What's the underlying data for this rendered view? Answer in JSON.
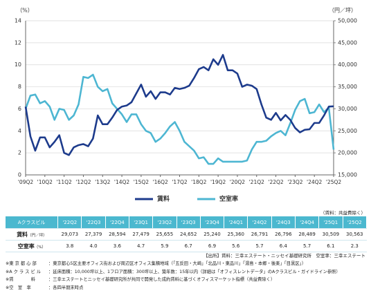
{
  "chart_data": {
    "type": "line",
    "y_label": "（%）",
    "y2_label": "（円／坪）",
    "categories": [
      "'09Q2",
      null,
      null,
      null,
      "'10Q2",
      null,
      null,
      null,
      "'11Q2",
      null,
      null,
      null,
      "'12Q2",
      null,
      null,
      null,
      "'13Q2",
      null,
      null,
      null,
      "'14Q2",
      null,
      null,
      null,
      "'15Q2",
      null,
      null,
      null,
      "'16Q2",
      null,
      null,
      null,
      "'17Q2",
      null,
      null,
      null,
      "'18Q2",
      null,
      null,
      null,
      "'19Q2",
      null,
      null,
      null,
      "'20Q2",
      null,
      null,
      null,
      "'21Q2",
      null,
      null,
      null,
      "'22Q2",
      null,
      null,
      null,
      "'23Q2",
      null,
      null,
      null,
      "'24Q2",
      null,
      null,
      null,
      "'25Q2"
    ],
    "series": [
      {
        "name": "賃料",
        "color": "#1d3b8c",
        "axis": "y2",
        "values": [
          30500,
          23750,
          20500,
          23500,
          23500,
          21250,
          22500,
          24000,
          20000,
          19500,
          21250,
          21750,
          22000,
          21500,
          23250,
          28500,
          26500,
          26500,
          28000,
          29750,
          30500,
          30750,
          31500,
          33500,
          35500,
          32750,
          34000,
          32250,
          33750,
          33750,
          33250,
          34750,
          34500,
          34750,
          35250,
          37000,
          39000,
          39500,
          38750,
          41250,
          40000,
          42250,
          38750,
          38750,
          38000,
          35000,
          35500,
          35250,
          34500,
          31000,
          28000,
          27500,
          29073,
          27379,
          28594,
          27479,
          25655,
          24652,
          25240,
          25360,
          26791,
          26796,
          28489,
          30509,
          30563
        ]
      },
      {
        "name": "空室率",
        "color": "#4db6d2",
        "values": [
          6.0,
          7.2,
          7.3,
          6.5,
          6.7,
          6.2,
          5.0,
          6.0,
          5.9,
          5.0,
          5.4,
          6.4,
          8.9,
          8.8,
          9.1,
          8.0,
          7.6,
          7.8,
          6.5,
          6.0,
          5.5,
          4.8,
          5.5,
          5.5,
          4.6,
          4.0,
          3.8,
          3.0,
          3.3,
          3.8,
          4.4,
          4.8,
          4.0,
          3.0,
          2.6,
          2.2,
          1.5,
          1.6,
          1.0,
          1.0,
          1.5,
          1.2,
          1.2,
          1.2,
          1.2,
          1.2,
          1.3,
          2.3,
          3.0,
          3.0,
          3.1,
          3.5,
          3.8,
          4.0,
          3.6,
          4.7,
          5.9,
          6.7,
          6.9,
          5.6,
          5.7,
          6.4,
          5.7,
          6.1,
          2.3
        ]
      }
    ],
    "ylim": [
      0,
      14
    ],
    "yticks": [
      0,
      2,
      4,
      6,
      8,
      10,
      12,
      14
    ],
    "y2lim": [
      15000,
      50000
    ],
    "y2ticks": [
      {
        "value": 15000,
        "label": "15,000"
      },
      {
        "value": 20000,
        "label": "20,000"
      },
      {
        "value": 25000,
        "label": "25,000"
      },
      {
        "value": 30000,
        "label": "30,000"
      },
      {
        "value": 35000,
        "label": "35,000"
      },
      {
        "value": 40000,
        "label": "40,000"
      },
      {
        "value": 45000,
        "label": "45,000"
      },
      {
        "value": 50000,
        "label": "50,000"
      }
    ],
    "grid": true,
    "legend": "bottom"
  },
  "table": {
    "note": "（賃料：共益費除く）",
    "header": [
      "Aクラスビル",
      "'22Q2",
      "'22Q3",
      "'22Q4",
      "'23Q1",
      "'23Q2",
      "'23Q3",
      "'23Q4",
      "'24Q1",
      "'24Q2",
      "'24Q3",
      "'24Q4",
      "'25Q1",
      "'25Q2"
    ],
    "rows": [
      {
        "label": "賃料",
        "unit": "（円／坪）",
        "cells": [
          "29,073",
          "27,379",
          "28,594",
          "27,479",
          "25,655",
          "24,652",
          "25,240",
          "25,360",
          "26,791",
          "26,796",
          "28,489",
          "30,509",
          "30,563"
        ]
      },
      {
        "label": "空室率",
        "unit": "（%）",
        "cells": [
          "3.8",
          "4.0",
          "3.6",
          "4.7",
          "5.9",
          "6.7",
          "6.9",
          "5.6",
          "5.7",
          "6.4",
          "5.7",
          "6.1",
          "2.3"
        ]
      }
    ]
  },
  "source": "【出所】賃料：三幸エステート・ニッセイ基礎研究所　空室率：三幸エステート",
  "footnotes": [
    {
      "key": "※東 京 都 心 部",
      "text": "：東京都心5区主要オフィス街および周辺区オフィス集積地域（「五反田・大崎」「北品川・東品川」「湯島・本郷・後楽」「目黒区」）"
    },
    {
      "key": "※A ク ラ ス ビ ル",
      "text": "：延床面積：10,000坪以上、1フロア面積：300坪以上、築年数：15年以内（詳細は「オフィスレントデータ」のAクラスビル・ガイドライン参照）"
    },
    {
      "key": "※賃　　　　料",
      "text": "：三幸エステートとニッセイ基礎研究所が共同で開発した成約賃料に基づくオフィスマーケット指標（共益費除く）"
    },
    {
      "key": "※空　室　率",
      "text": "：各四半期末時点"
    }
  ]
}
